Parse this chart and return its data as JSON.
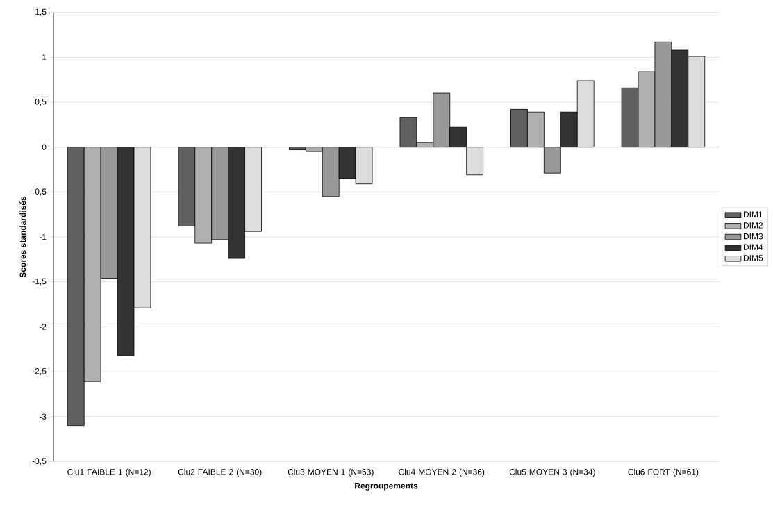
{
  "chart_data": {
    "type": "bar",
    "xlabel": "Regroupements",
    "ylabel": "Scores standardisés",
    "categories": [
      "Clu1 FAIBLE 1 (N=12)",
      "Clu2 FAIBLE 2 (N=30)",
      "Clu3 MOYEN 1 (N=63)",
      "Clu4 MOYEN 2 (N=36)",
      "Clu5 MOYEN 3 (N=34)",
      "Clu6 FORT (N=61)"
    ],
    "series": [
      {
        "name": "DIM1",
        "color": "#606060",
        "values": [
          -3.1,
          -0.88,
          -0.03,
          0.33,
          0.42,
          0.66
        ]
      },
      {
        "name": "DIM2",
        "color": "#b0b0b0",
        "values": [
          -2.61,
          -1.07,
          -0.05,
          0.05,
          0.39,
          0.84
        ]
      },
      {
        "name": "DIM3",
        "color": "#999999",
        "values": [
          -1.46,
          -1.03,
          -0.55,
          0.6,
          -0.29,
          1.17
        ]
      },
      {
        "name": "DIM4",
        "color": "#333333",
        "values": [
          -2.32,
          -1.24,
          -0.35,
          0.22,
          0.39,
          1.08
        ]
      },
      {
        "name": "DIM5",
        "color": "#dddddd",
        "values": [
          -1.79,
          -0.94,
          -0.41,
          -0.31,
          0.74,
          1.01
        ]
      }
    ],
    "ylim": [
      -3.5,
      1.5
    ],
    "yticks": [
      {
        "value": -3.5,
        "label": "-3,5"
      },
      -3,
      {
        "value": -2.5,
        "label": "-2,5"
      },
      -2,
      {
        "value": -1.5,
        "label": "-1,5"
      },
      -1,
      {
        "value": -0.5,
        "label": "-0,5"
      },
      0,
      {
        "value": 0.5,
        "label": "0,5"
      },
      1,
      {
        "value": 1.5,
        "label": "1,5"
      }
    ],
    "grid": "y",
    "legend": "right"
  }
}
